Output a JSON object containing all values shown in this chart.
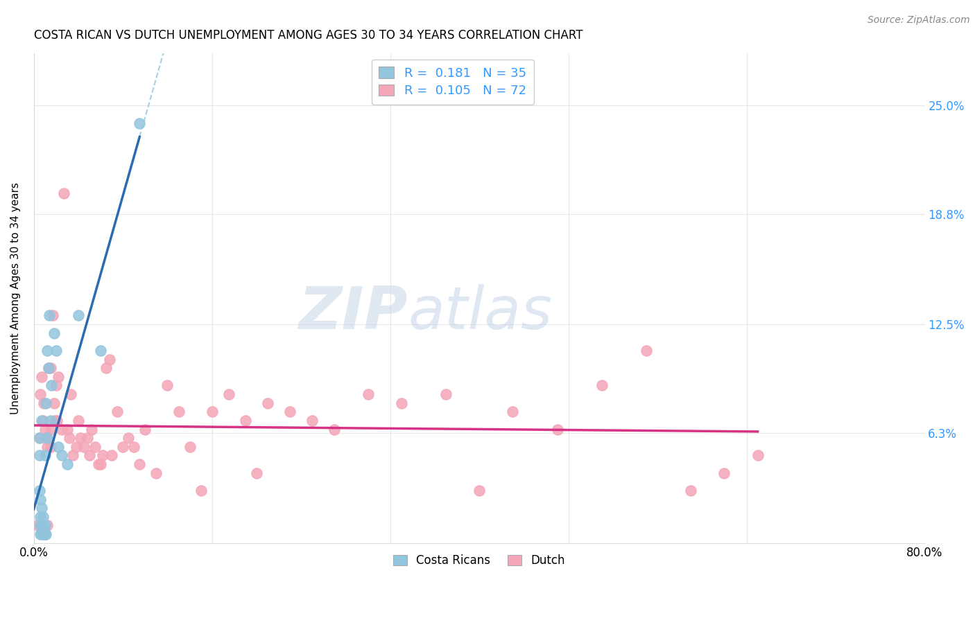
{
  "title": "COSTA RICAN VS DUTCH UNEMPLOYMENT AMONG AGES 30 TO 34 YEARS CORRELATION CHART",
  "source": "Source: ZipAtlas.com",
  "ylabel": "Unemployment Among Ages 30 to 34 years",
  "xlim": [
    0.0,
    0.8
  ],
  "ylim": [
    0.0,
    0.28
  ],
  "yticks": [
    0.063,
    0.125,
    0.188,
    0.25
  ],
  "ytick_labels": [
    "6.3%",
    "12.5%",
    "18.8%",
    "25.0%"
  ],
  "xticks": [
    0.0,
    0.16,
    0.32,
    0.48,
    0.64,
    0.8
  ],
  "costa_rican_color": "#92c5de",
  "dutch_color": "#f4a6b8",
  "trend_costa_rican_color": "#2b6cb0",
  "trend_dutch_color": "#d63384",
  "dashed_line_color": "#92c5de",
  "legend_r_costa": "0.181",
  "legend_n_costa": "35",
  "legend_r_dutch": "0.105",
  "legend_n_dutch": "72",
  "watermark_zip": "ZIP",
  "watermark_atlas": "atlas",
  "costa_rican_x": [
    0.005,
    0.005,
    0.005,
    0.006,
    0.006,
    0.006,
    0.006,
    0.007,
    0.007,
    0.007,
    0.007,
    0.008,
    0.008,
    0.008,
    0.009,
    0.009,
    0.01,
    0.01,
    0.01,
    0.011,
    0.011,
    0.012,
    0.012,
    0.013,
    0.014,
    0.015,
    0.016,
    0.018,
    0.02,
    0.022,
    0.025,
    0.03,
    0.04,
    0.06,
    0.095
  ],
  "costa_rican_y": [
    0.03,
    0.05,
    0.06,
    0.005,
    0.01,
    0.015,
    0.025,
    0.005,
    0.01,
    0.02,
    0.07,
    0.005,
    0.01,
    0.015,
    0.005,
    0.008,
    0.005,
    0.01,
    0.05,
    0.005,
    0.08,
    0.06,
    0.11,
    0.1,
    0.13,
    0.07,
    0.09,
    0.12,
    0.11,
    0.055,
    0.05,
    0.045,
    0.13,
    0.11,
    0.24
  ],
  "dutch_x": [
    0.003,
    0.005,
    0.006,
    0.007,
    0.008,
    0.009,
    0.009,
    0.01,
    0.01,
    0.011,
    0.012,
    0.012,
    0.013,
    0.015,
    0.015,
    0.016,
    0.017,
    0.018,
    0.019,
    0.02,
    0.021,
    0.022,
    0.025,
    0.027,
    0.03,
    0.032,
    0.033,
    0.035,
    0.038,
    0.04,
    0.042,
    0.045,
    0.048,
    0.05,
    0.052,
    0.055,
    0.058,
    0.06,
    0.062,
    0.065,
    0.068,
    0.07,
    0.075,
    0.08,
    0.085,
    0.09,
    0.095,
    0.1,
    0.11,
    0.12,
    0.13,
    0.14,
    0.15,
    0.16,
    0.175,
    0.19,
    0.2,
    0.21,
    0.23,
    0.25,
    0.27,
    0.3,
    0.33,
    0.37,
    0.4,
    0.43,
    0.47,
    0.51,
    0.55,
    0.59,
    0.62,
    0.65
  ],
  "dutch_y": [
    0.01,
    0.06,
    0.085,
    0.095,
    0.07,
    0.005,
    0.08,
    0.005,
    0.065,
    0.06,
    0.01,
    0.055,
    0.1,
    0.055,
    0.1,
    0.065,
    0.13,
    0.08,
    0.07,
    0.09,
    0.07,
    0.095,
    0.065,
    0.2,
    0.065,
    0.06,
    0.085,
    0.05,
    0.055,
    0.07,
    0.06,
    0.055,
    0.06,
    0.05,
    0.065,
    0.055,
    0.045,
    0.045,
    0.05,
    0.1,
    0.105,
    0.05,
    0.075,
    0.055,
    0.06,
    0.055,
    0.045,
    0.065,
    0.04,
    0.09,
    0.075,
    0.055,
    0.03,
    0.075,
    0.085,
    0.07,
    0.04,
    0.08,
    0.075,
    0.07,
    0.065,
    0.085,
    0.08,
    0.085,
    0.03,
    0.075,
    0.065,
    0.09,
    0.11,
    0.03,
    0.04,
    0.05
  ],
  "background_color": "#ffffff",
  "grid_color": "#e8e8e8"
}
